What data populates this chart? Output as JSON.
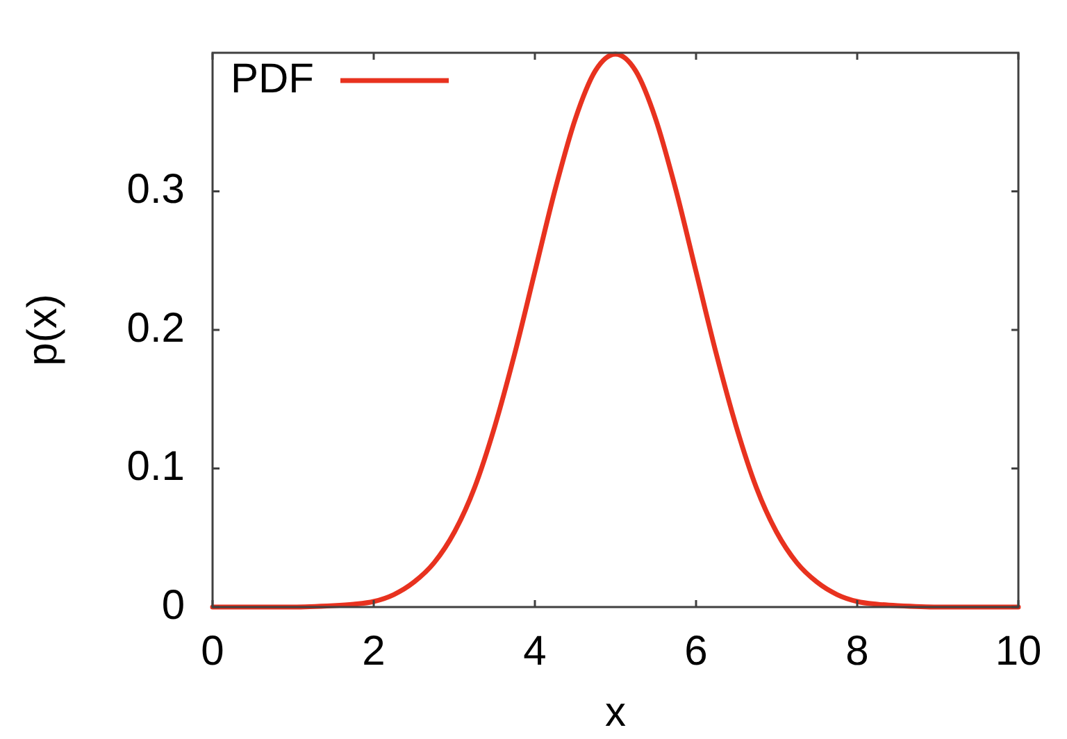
{
  "chart_data": {
    "type": "line",
    "xlabel": "x",
    "ylabel": "p(x)",
    "x": [
      0,
      0.5,
      1,
      1.5,
      1.75,
      2,
      2.25,
      2.5,
      2.75,
      3,
      3.25,
      3.5,
      3.75,
      4,
      4.25,
      4.5,
      4.75,
      5,
      5.25,
      5.5,
      5.75,
      6,
      6.25,
      6.5,
      6.75,
      7,
      7.25,
      7.5,
      7.75,
      8,
      8.25,
      8.5,
      9,
      9.5,
      10
    ],
    "series": [
      {
        "name": "PDF",
        "color": "#e8321f",
        "values": [
          0,
          0,
          0,
          0.001,
          0.002,
          0.004,
          0.009,
          0.018,
          0.032,
          0.054,
          0.086,
          0.13,
          0.183,
          0.242,
          0.301,
          0.352,
          0.387,
          0.399,
          0.387,
          0.352,
          0.301,
          0.242,
          0.183,
          0.13,
          0.086,
          0.054,
          0.032,
          0.018,
          0.009,
          0.004,
          0.002,
          0.001,
          0,
          0,
          0
        ]
      }
    ],
    "xlim": [
      0,
      10
    ],
    "xticks": [
      0,
      2,
      4,
      6,
      8,
      10
    ],
    "ylim": [
      0,
      0.4
    ],
    "yticks": [
      0,
      0.1,
      0.2,
      0.3
    ],
    "legend": "top left"
  }
}
